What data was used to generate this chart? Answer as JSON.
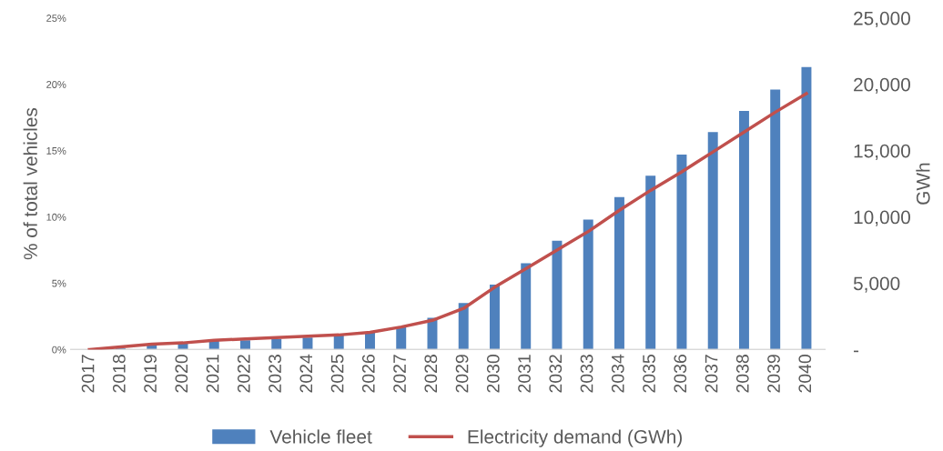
{
  "chart_data": {
    "type": "bar",
    "categories": [
      "2017",
      "2018",
      "2019",
      "2020",
      "2021",
      "2022",
      "2023",
      "2024",
      "2025",
      "2026",
      "2027",
      "2028",
      "2029",
      "2030",
      "2031",
      "2032",
      "2033",
      "2034",
      "2035",
      "2036",
      "2037",
      "2038",
      "2039",
      "2040"
    ],
    "series": [
      {
        "name": "Vehicle fleet",
        "color": "#4f81bd",
        "values": [
          0,
          0.1,
          0.3,
          0.5,
          0.65,
          0.7,
          0.8,
          0.9,
          1.1,
          1.3,
          1.7,
          2.4,
          3.5,
          4.9,
          6.5,
          8.2,
          9.8,
          11.5,
          13.1,
          14.7,
          16.4,
          18.0,
          19.6,
          21.3
        ]
      },
      {
        "name": "Electricity demand (GWh)",
        "color": "#c0504d",
        "type": "line",
        "axis": "y2",
        "values": [
          0,
          200,
          400,
          500,
          700,
          800,
          900,
          1000,
          1100,
          1300,
          1700,
          2200,
          3100,
          4700,
          6100,
          7500,
          8900,
          10500,
          12000,
          13400,
          14900,
          16400,
          17900,
          19300
        ]
      }
    ],
    "ylabel": "% of total vehicles",
    "y2label": "GWh",
    "ylim": [
      0,
      25
    ],
    "yticks": [
      {
        "value": 0,
        "label": "0%"
      },
      {
        "value": 5,
        "label": "5%"
      },
      {
        "value": 10,
        "label": "10%"
      },
      {
        "value": 15,
        "label": "15%"
      },
      {
        "value": 20,
        "label": "20%"
      },
      {
        "value": 25,
        "label": "25%"
      }
    ],
    "y2lim": [
      0,
      25000
    ],
    "y2ticks": [
      {
        "value": 0,
        "label": "-"
      },
      {
        "value": 5000,
        "label": "5,000"
      },
      {
        "value": 10000,
        "label": "10,000"
      },
      {
        "value": 15000,
        "label": "15,000"
      },
      {
        "value": 20000,
        "label": "20,000"
      },
      {
        "value": 25000,
        "label": "25,000"
      }
    ],
    "legend": "bottom",
    "grid": false,
    "marker": "none",
    "line_style": "solid"
  }
}
